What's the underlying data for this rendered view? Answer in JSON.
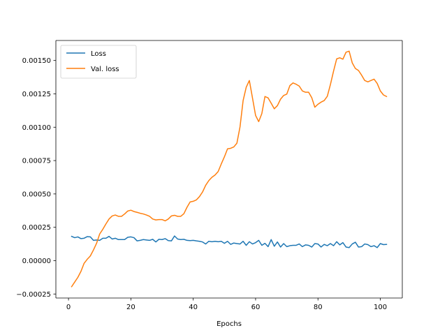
{
  "chart_data": {
    "type": "line",
    "title": "",
    "xlabel": "Epochs",
    "ylabel": "",
    "xlim": [
      -4.05,
      107.05
    ],
    "ylim": [
      -0.00028,
      0.00165
    ],
    "xticks": [
      0,
      20,
      40,
      60,
      80,
      100
    ],
    "xtick_labels": [
      "0",
      "20",
      "40",
      "60",
      "80",
      "100"
    ],
    "yticks": [
      -0.00025,
      0,
      0.00025,
      0.0005,
      0.00075,
      0.001,
      0.00125,
      0.0015
    ],
    "ytick_labels": [
      "−0.00025",
      "0.00000",
      "0.00025",
      "0.00050",
      "0.00075",
      "0.00100",
      "0.00125",
      "0.00150"
    ],
    "grid": false,
    "legend_position": "top-left",
    "series": [
      {
        "name": "Loss",
        "color": "#1f77b4",
        "x": [
          1,
          2,
          3,
          4,
          5,
          6,
          7,
          8,
          9,
          10,
          11,
          12,
          13,
          14,
          15,
          16,
          17,
          18,
          19,
          20,
          21,
          22,
          23,
          24,
          25,
          26,
          27,
          28,
          29,
          30,
          31,
          32,
          33,
          34,
          35,
          36,
          37,
          38,
          39,
          40,
          41,
          42,
          43,
          44,
          45,
          46,
          47,
          48,
          49,
          50,
          51,
          52,
          53,
          54,
          55,
          56,
          57,
          58,
          59,
          60,
          61,
          62,
          63,
          64,
          65,
          66,
          67,
          68,
          69,
          70,
          71,
          72,
          73,
          74,
          75,
          76,
          77,
          78,
          79,
          80,
          81,
          82,
          83,
          84,
          85,
          86,
          87,
          88,
          89,
          90,
          91,
          92,
          93,
          94,
          95,
          96,
          97,
          98,
          99,
          100,
          101,
          102
        ],
        "values": [
          0.000182,
          0.000172,
          0.000178,
          0.000165,
          0.000168,
          0.00018,
          0.000178,
          0.000152,
          0.000155,
          0.000152,
          0.000168,
          0.000168,
          0.000182,
          0.000162,
          0.000168,
          0.000158,
          0.000158,
          0.000158,
          0.000175,
          0.000178,
          0.000172,
          0.000148,
          0.000152,
          0.000158,
          0.000155,
          0.000152,
          0.00016,
          0.00014,
          0.00016,
          0.000158,
          0.000165,
          0.00015,
          0.000148,
          0.000185,
          0.000162,
          0.000158,
          0.00016,
          0.000152,
          0.00015,
          0.000152,
          0.000148,
          0.000145,
          0.00014,
          0.000125,
          0.000145,
          0.000142,
          0.000145,
          0.000142,
          0.000145,
          0.00013,
          0.000145,
          0.000122,
          0.000132,
          0.000128,
          0.000125,
          0.000145,
          0.000115,
          0.000142,
          0.000125,
          0.000135,
          0.000152,
          0.000115,
          0.00013,
          0.000105,
          0.000158,
          0.000108,
          0.00014,
          0.000102,
          0.000128,
          0.000105,
          0.000112,
          0.000115,
          0.000115,
          0.000125,
          0.000105,
          0.000118,
          0.000115,
          0.000102,
          0.000128,
          0.000125,
          0.000102,
          0.000122,
          0.000112,
          0.000128,
          0.000112,
          0.000142,
          0.000118,
          0.000135,
          0.000102,
          9.8e-05,
          0.000125,
          0.000138,
          0.000102,
          0.000105,
          0.000125,
          0.00012,
          0.000105,
          0.000112,
          9.8e-05,
          0.000128,
          0.00012,
          0.000122
        ]
      },
      {
        "name": "Val. loss",
        "color": "#ff7f0e",
        "x": [
          1,
          2,
          3,
          4,
          5,
          6,
          7,
          8,
          9,
          10,
          11,
          12,
          13,
          14,
          15,
          16,
          17,
          18,
          19,
          20,
          21,
          22,
          23,
          24,
          25,
          26,
          27,
          28,
          29,
          30,
          31,
          32,
          33,
          34,
          35,
          36,
          37,
          38,
          39,
          40,
          41,
          42,
          43,
          44,
          45,
          46,
          47,
          48,
          49,
          50,
          51,
          52,
          53,
          54,
          55,
          56,
          57,
          58,
          59,
          60,
          61,
          62,
          63,
          64,
          65,
          66,
          67,
          68,
          69,
          70,
          71,
          72,
          73,
          74,
          75,
          76,
          77,
          78,
          79,
          80,
          81,
          82,
          83,
          84,
          85,
          86,
          87,
          88,
          89,
          90,
          91,
          92,
          93,
          94,
          95,
          96,
          97,
          98,
          99,
          100,
          101,
          102
        ],
        "values": [
          -0.000195,
          -0.00016,
          -0.000125,
          -8e-05,
          -2e-05,
          1e-05,
          3.5e-05,
          8e-05,
          0.00013,
          0.0002,
          0.000235,
          0.000275,
          0.000312,
          0.000335,
          0.000342,
          0.000332,
          0.000332,
          0.00035,
          0.000372,
          0.000378,
          0.000368,
          0.000362,
          0.000355,
          0.00035,
          0.000342,
          0.000332,
          0.000312,
          0.000305,
          0.000308,
          0.000308,
          0.000298,
          0.000312,
          0.000335,
          0.00034,
          0.000332,
          0.000332,
          0.000352,
          0.0004,
          0.00044,
          0.000445,
          0.000455,
          0.00048,
          0.000515,
          0.000565,
          0.0006,
          0.000625,
          0.000642,
          0.000668,
          0.000725,
          0.000778,
          0.000838,
          0.000842,
          0.000852,
          0.00088,
          0.001002,
          0.0012,
          0.0013,
          0.00135,
          0.00122,
          0.001088,
          0.001042,
          0.001102,
          0.00123,
          0.00122,
          0.00118,
          0.001138,
          0.001162,
          0.00121,
          0.001238,
          0.001248,
          0.001312,
          0.001332,
          0.001322,
          0.001308,
          0.001272,
          0.001262,
          0.001262,
          0.001222,
          0.00115,
          0.001172,
          0.001188,
          0.0012,
          0.001232,
          0.00132,
          0.00142,
          0.001512,
          0.00152,
          0.00151,
          0.001562,
          0.00157,
          0.001482,
          0.00144,
          0.001425,
          0.00139,
          0.00135,
          0.00134,
          0.00135,
          0.00136,
          0.001328,
          0.001272,
          0.001242,
          0.00123
        ]
      }
    ]
  }
}
